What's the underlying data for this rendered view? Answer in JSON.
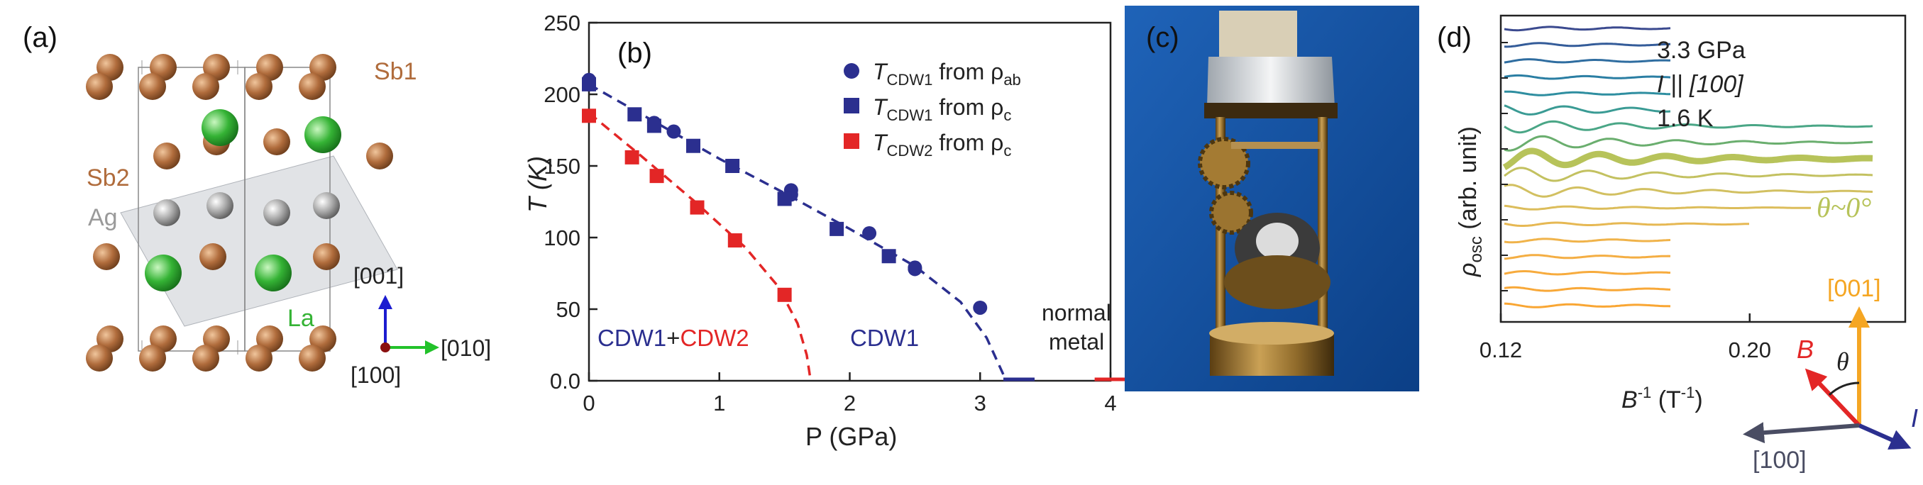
{
  "panel_labels": {
    "a": "(a)",
    "b": "(b)",
    "c": "(c)",
    "d": "(d)"
  },
  "colors": {
    "sb": "#b06c3c",
    "ag": "#9a9a9a",
    "la": "#35b335",
    "cdw1": "#2b2f8f",
    "cdw2": "#e32626",
    "accent_green": "#b7c35a",
    "orange": "#f5a623",
    "gray_arrow": "#4a4d63"
  },
  "panel_a": {
    "atoms": {
      "sb1": "Sb1",
      "sb2": "Sb2",
      "ag": "Ag",
      "la": "La"
    },
    "axes": {
      "z": "[001]",
      "y": "[010]",
      "x": "[100]"
    }
  },
  "chart_data": [
    {
      "type": "scatter",
      "panel": "b",
      "xlabel": "P (GPa)",
      "ylabel": "T (K)",
      "xlim": [
        0,
        4
      ],
      "ylim": [
        0,
        250
      ],
      "xticks": [
        0,
        1,
        2,
        3,
        4
      ],
      "yticks": [
        0.0,
        50,
        100,
        150,
        200,
        250
      ],
      "xtick_labels": [
        "0",
        "1",
        "2",
        "3",
        "4"
      ],
      "ytick_labels": [
        "0.0",
        "50",
        "100",
        "150",
        "200",
        "250"
      ],
      "legend_position": "top-right",
      "series": [
        {
          "name": "T_CDW1 from ρ_ab",
          "label_main": "T",
          "label_sub": "CDW1",
          "label_from": " from ρ",
          "label_from_sub": "ab",
          "marker": "circle",
          "color": "#2b2f8f",
          "points": [
            [
              0,
              207
            ],
            [
              0,
              210
            ],
            [
              0.5,
              180
            ],
            [
              0.65,
              174
            ],
            [
              1.55,
              130
            ],
            [
              1.55,
              133
            ],
            [
              2.15,
              103
            ],
            [
              2.5,
              79
            ],
            [
              2.5,
              78
            ],
            [
              3.0,
              51
            ]
          ]
        },
        {
          "name": "T_CDW1 from ρ_c",
          "label_main": "T",
          "label_sub": "CDW1",
          "label_from": " from ρ",
          "label_from_sub": "c",
          "marker": "square",
          "color": "#2b2f8f",
          "points": [
            [
              0,
              207
            ],
            [
              0.35,
              186
            ],
            [
              0.5,
              178
            ],
            [
              0.8,
              164
            ],
            [
              1.1,
              150
            ],
            [
              1.5,
              127
            ],
            [
              1.9,
              106
            ],
            [
              2.3,
              87
            ]
          ]
        },
        {
          "name": "T_CDW2 from ρ_c",
          "label_main": "T",
          "label_sub": "CDW2",
          "label_from": " from ρ",
          "label_from_sub": "c",
          "marker": "square",
          "color": "#e32626",
          "points": [
            [
              0,
              185
            ],
            [
              0.33,
              156
            ],
            [
              0.52,
              143
            ],
            [
              0.83,
              121
            ],
            [
              1.12,
              98
            ],
            [
              1.5,
              60
            ]
          ]
        }
      ],
      "fit_curves": [
        {
          "name": "CDW1 boundary",
          "color": "#2b2f8f",
          "style": "dashed",
          "points": [
            [
              0,
              207
            ],
            [
              0.5,
              181
            ],
            [
              1.0,
              155
            ],
            [
              1.5,
              131
            ],
            [
              2.0,
              106
            ],
            [
              2.5,
              80
            ],
            [
              2.85,
              55
            ],
            [
              3.05,
              30
            ],
            [
              3.15,
              10
            ],
            [
              3.2,
              0
            ]
          ]
        },
        {
          "name": "CDW2 boundary",
          "color": "#e32626",
          "style": "dashed",
          "points": [
            [
              0,
              187
            ],
            [
              0.4,
              157
            ],
            [
              0.8,
              126
            ],
            [
              1.2,
              93
            ],
            [
              1.45,
              66
            ],
            [
              1.6,
              40
            ],
            [
              1.67,
              18
            ],
            [
              1.7,
              0
            ]
          ]
        }
      ],
      "axis_endpoints": [
        {
          "x": 3.2,
          "color": "#2b2f8f"
        },
        {
          "x": 3.9,
          "color": "#e32626"
        }
      ],
      "annotations": {
        "cdw1_part": "CDW1",
        "plus": "+",
        "cdw2_part": "CDW2",
        "cdw1_region": "CDW1",
        "normal_line1": "normal",
        "normal_line2": "metal"
      }
    },
    {
      "type": "line",
      "panel": "d",
      "xlabel_main": "B",
      "xlabel_sup": "-1",
      "xlabel_unit": " (T",
      "xlabel_unit_sup": "-1",
      "xlabel_close": ")",
      "ylabel_main": "ρ",
      "ylabel_sub": "osc",
      "ylabel_unit": " (arb. unit)",
      "xlim": [
        0.12,
        0.25
      ],
      "xticks": [
        0.12,
        0.2
      ],
      "xtick_labels": [
        "0.12",
        "0.20"
      ],
      "info": [
        "3.3 GPa",
        "I || [100]",
        "1.6 K"
      ],
      "highlight_label": "θ~0°",
      "offset_traces": 18,
      "highlight_index": 8
    }
  ],
  "panel_d_inset": {
    "z": "[001]",
    "x": "[100]",
    "field": "B",
    "current": "I",
    "angle": "θ"
  }
}
